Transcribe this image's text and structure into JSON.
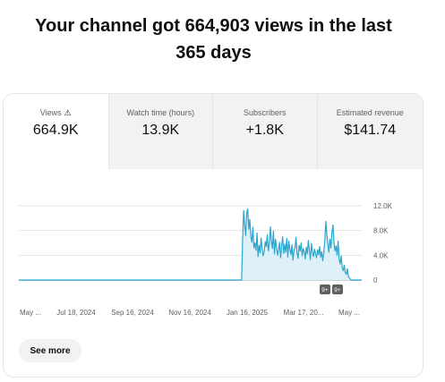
{
  "headline": {
    "line1": "Your channel got 664,903 views in the last",
    "line2": "365 days"
  },
  "metrics": [
    {
      "label": "Views",
      "value": "664.9K",
      "warning_icon": "warning-triangle-icon",
      "active": true
    },
    {
      "label": "Watch time (hours)",
      "value": "13.9K",
      "active": false
    },
    {
      "label": "Subscribers",
      "value": "+1.8K",
      "active": false
    },
    {
      "label": "Estimated revenue",
      "value": "$141.74",
      "active": false
    }
  ],
  "see_more_label": "See more",
  "markers": [
    "9+",
    "9+"
  ],
  "colors": {
    "line": "#2aa6cf",
    "area": "#d6eef7",
    "accent_bg": "#f2f2f2"
  },
  "chart_data": {
    "type": "area",
    "title": "",
    "xlabel": "",
    "ylabel": "",
    "ylim": [
      0,
      12000
    ],
    "y_ticks": [
      "12.0K",
      "8.0K",
      "4.0K",
      "0"
    ],
    "y_tick_values": [
      12000,
      8000,
      4000,
      0
    ],
    "x_tick_labels": [
      "May ...",
      "Jul 18, 2024",
      "Sep 16, 2024",
      "Nov 16, 2024",
      "Jan 16, 2025",
      "Mar 17, 20...",
      "May ..."
    ],
    "grid": true,
    "series": [
      {
        "values": [
          0,
          0,
          0,
          0,
          0,
          0,
          0,
          0,
          0,
          0,
          0,
          0,
          0,
          0,
          0,
          0,
          0,
          0,
          0,
          0,
          0,
          0,
          0,
          0,
          0,
          0,
          0,
          0,
          0,
          0,
          0,
          0,
          0,
          0,
          0,
          0,
          0,
          0,
          0,
          0,
          0,
          0,
          0,
          0,
          0,
          0,
          0,
          0,
          0,
          0,
          0,
          0,
          0,
          0,
          0,
          0,
          0,
          0,
          0,
          0,
          0,
          0,
          0,
          0,
          0,
          0,
          0,
          0,
          0,
          0,
          0,
          0,
          0,
          0,
          0,
          0,
          0,
          0,
          0,
          0,
          0,
          0,
          0,
          0,
          0,
          0,
          0,
          0,
          0,
          0,
          0,
          0,
          0,
          0,
          0,
          0,
          0,
          0,
          0,
          0,
          0,
          0,
          0,
          0,
          0,
          0,
          0,
          0,
          0,
          0,
          0,
          0,
          0,
          0,
          0,
          0,
          0,
          0,
          0,
          0,
          0,
          0,
          0,
          0,
          0,
          0,
          0,
          0,
          0,
          0,
          0,
          0,
          0,
          0,
          0,
          0,
          0,
          0,
          0,
          0,
          0,
          0,
          0,
          0,
          0,
          0,
          0,
          0,
          0,
          0,
          0,
          0,
          0,
          0,
          0,
          0,
          0,
          0,
          0,
          0,
          0,
          0,
          0,
          0,
          0,
          0,
          0,
          0,
          0,
          0,
          0,
          0,
          0,
          0,
          0,
          0,
          0,
          0,
          0,
          0,
          0,
          0,
          0,
          0,
          0,
          0,
          0,
          0,
          0,
          0,
          0,
          0,
          0,
          0,
          0,
          0,
          0,
          0,
          0,
          0,
          0,
          0,
          0,
          0,
          0,
          0,
          0,
          0,
          0,
          0,
          0,
          0,
          0,
          0,
          0,
          0,
          0,
          0,
          6500,
          11200,
          9000,
          7200,
          10800,
          11500,
          8200,
          9800,
          7000,
          6100,
          8500,
          5200,
          6000,
          4800,
          7600,
          3800,
          5600,
          4400,
          6800,
          5000,
          3900,
          4600,
          6200,
          5400,
          7300,
          4700,
          5900,
          8600,
          6400,
          5100,
          7900,
          4200,
          6600,
          5300,
          4000,
          4900,
          6100,
          3600,
          5500,
          7000,
          4300,
          5800,
          4500,
          6700,
          3700,
          6300,
          5000,
          4100,
          5700,
          3200,
          4800,
          5200,
          6900,
          4400,
          3500,
          5600,
          4700,
          6000,
          3900,
          5100,
          4600,
          3400,
          5300,
          4200,
          6400,
          4800,
          3300,
          5900,
          4500,
          3800,
          5000,
          4300,
          3600,
          4900,
          4100,
          5400,
          3700,
          4600,
          3100,
          4400,
          6200,
          9500,
          7400,
          5800,
          4500,
          6600,
          5200,
          7800,
          8900,
          6000,
          4700,
          5500,
          4000,
          6300,
          3400,
          2600,
          3900,
          2000,
          1500,
          2400,
          1200,
          900,
          1800,
          600,
          300,
          100,
          0,
          0,
          0,
          0,
          0,
          0,
          0,
          0,
          0,
          0,
          0
        ]
      }
    ]
  }
}
